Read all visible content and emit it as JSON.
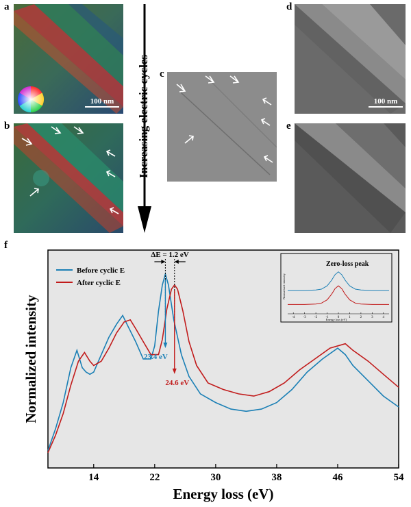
{
  "panels": {
    "a": "a",
    "b": "b",
    "c": "c",
    "d": "d",
    "e": "e",
    "f": "f"
  },
  "scale_bar_a": "100 nm",
  "scale_bar_d": "100 nm",
  "cycle_axis_label": "Increasing electric cycles",
  "colors": {
    "before": "#1a7fb5",
    "after": "#c11b1b",
    "plot_bg": "#e6e6e6"
  },
  "chart_data": [
    {
      "type": "line",
      "title": "",
      "xlabel": "Energy loss (eV)",
      "ylabel": "Normalized intensity",
      "xlim": [
        8,
        54
      ],
      "ylim": [
        0,
        1
      ],
      "xticks": [
        "14",
        "22",
        "30",
        "38",
        "46",
        "54"
      ],
      "xtick_values": [
        14,
        22,
        30,
        38,
        46,
        54
      ],
      "legend_placement": "top-left",
      "series": [
        {
          "name": "Before cyclic E",
          "color": "#1a7fb5",
          "x": [
            8,
            9,
            10,
            11,
            11.8,
            12.5,
            13,
            13.5,
            14,
            15,
            16,
            17,
            17.8,
            18.5,
            19.5,
            20.5,
            21.5,
            22,
            22.5,
            23,
            23.4,
            23.8,
            24.5,
            25.5,
            26.5,
            28,
            30,
            32,
            34,
            36,
            38,
            40,
            42,
            44,
            46,
            47,
            48,
            50,
            52,
            54
          ],
          "y": [
            0.08,
            0.18,
            0.3,
            0.46,
            0.54,
            0.46,
            0.44,
            0.43,
            0.44,
            0.52,
            0.6,
            0.66,
            0.7,
            0.65,
            0.58,
            0.5,
            0.5,
            0.56,
            0.72,
            0.84,
            0.89,
            0.84,
            0.68,
            0.52,
            0.42,
            0.34,
            0.3,
            0.27,
            0.26,
            0.27,
            0.3,
            0.36,
            0.44,
            0.5,
            0.55,
            0.52,
            0.47,
            0.4,
            0.33,
            0.28
          ]
        },
        {
          "name": "After cyclic E",
          "color": "#c11b1b",
          "x": [
            8,
            9,
            10,
            11,
            12,
            12.8,
            13.5,
            14,
            15,
            16,
            17,
            18,
            18.8,
            19.5,
            20.5,
            21.5,
            22.5,
            23,
            23.6,
            24.2,
            24.6,
            25,
            25.7,
            26.5,
            27.5,
            29,
            31,
            33,
            35,
            37,
            39,
            41,
            43,
            45,
            47,
            48,
            50,
            52,
            54
          ],
          "y": [
            0.07,
            0.15,
            0.25,
            0.38,
            0.49,
            0.53,
            0.49,
            0.47,
            0.49,
            0.55,
            0.62,
            0.67,
            0.68,
            0.64,
            0.58,
            0.52,
            0.52,
            0.59,
            0.73,
            0.82,
            0.84,
            0.82,
            0.72,
            0.58,
            0.47,
            0.39,
            0.36,
            0.34,
            0.33,
            0.35,
            0.39,
            0.45,
            0.5,
            0.55,
            0.57,
            0.54,
            0.49,
            0.43,
            0.37
          ]
        }
      ],
      "annotations": {
        "delta_e": "ΔE = 1.2 eV",
        "peak_before": "23.4 eV",
        "peak_after": "24.6 eV",
        "peak_before_x": 23.4,
        "peak_after_x": 24.6
      }
    },
    {
      "type": "line",
      "title": "Zero-loss peak",
      "xlabel": "Energy loss (eV)",
      "ylabel": "Normalized intensity",
      "xlim": [
        -4.5,
        4.5
      ],
      "xticks": [
        "-4",
        "-3",
        "-2",
        "-1",
        "0",
        "1",
        "2",
        "3",
        "4"
      ],
      "xtick_values": [
        -4,
        -3,
        -2,
        -1,
        0,
        1,
        2,
        3,
        4
      ],
      "series": [
        {
          "color": "#1a7fb5",
          "x": [
            -4.5,
            -3,
            -2,
            -1.5,
            -1,
            -0.6,
            -0.3,
            0,
            0.3,
            0.6,
            1,
            1.5,
            2,
            3,
            4.5
          ],
          "y": [
            0.5,
            0.5,
            0.51,
            0.53,
            0.6,
            0.72,
            0.84,
            0.9,
            0.84,
            0.72,
            0.6,
            0.53,
            0.51,
            0.5,
            0.5
          ]
        },
        {
          "color": "#c11b1b",
          "x": [
            -4.5,
            -3,
            -2,
            -1.5,
            -1,
            -0.6,
            -0.3,
            0,
            0.3,
            0.6,
            1,
            1.5,
            2,
            3,
            4.5
          ],
          "y": [
            0.2,
            0.2,
            0.21,
            0.23,
            0.3,
            0.42,
            0.54,
            0.6,
            0.54,
            0.42,
            0.3,
            0.23,
            0.21,
            0.2,
            0.2
          ]
        }
      ]
    }
  ]
}
